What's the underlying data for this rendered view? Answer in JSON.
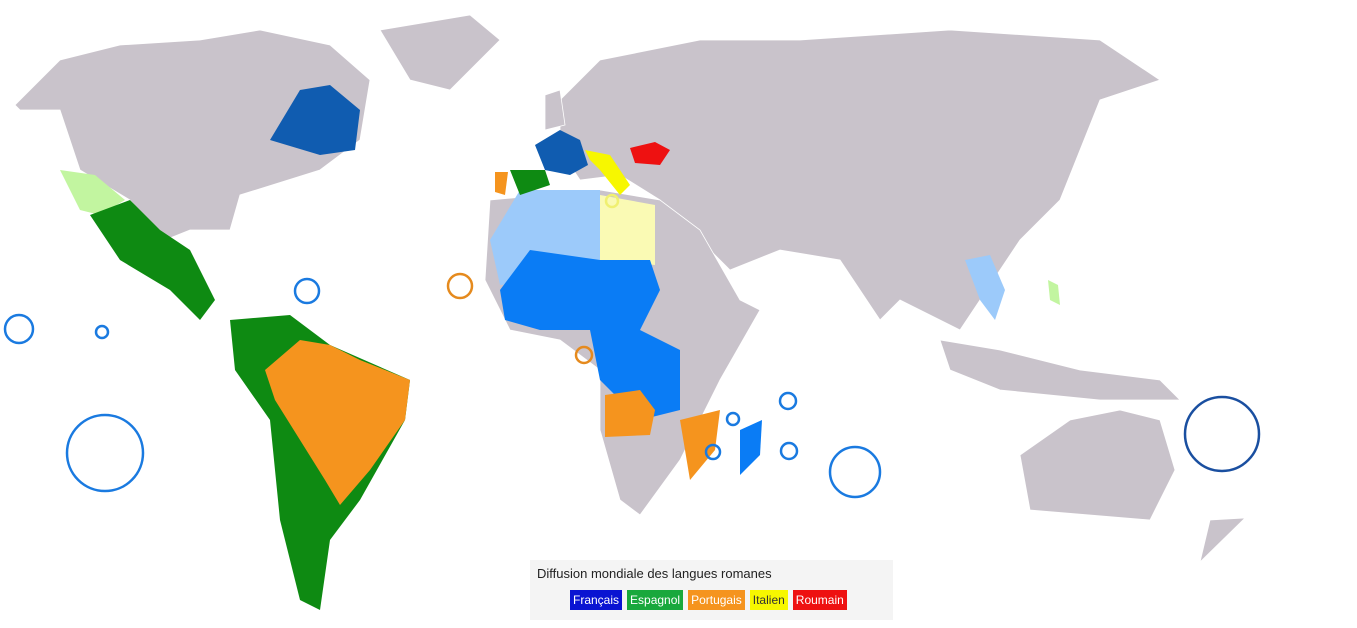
{
  "legend": {
    "title": "Diffusion mondiale des langues romanes",
    "items": [
      {
        "label": "Français",
        "color": "#0a14d2"
      },
      {
        "label": "Espagnol",
        "color": "#19a83c"
      },
      {
        "label": "Portugais",
        "color": "#f5941e"
      },
      {
        "label": "Italien",
        "color": "#f7f700"
      },
      {
        "label": "Roumain",
        "color": "#ee1111"
      }
    ]
  }
}
